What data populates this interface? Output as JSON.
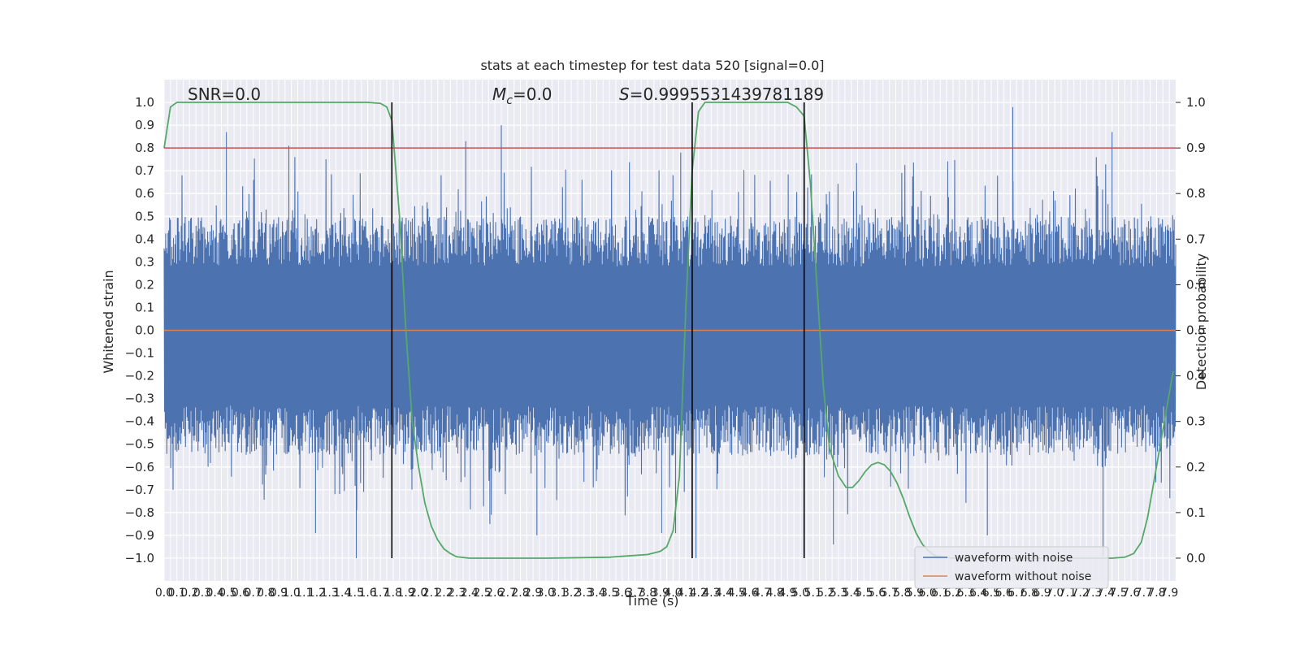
{
  "chart_data": {
    "type": "line",
    "title": "stats at each timestep for test data 520 [signal=0.0]",
    "xlabel": "Time (s)",
    "ylabel": "Whitened strain",
    "y2label": "Detection probability",
    "xlim": [
      0.0,
      7.95
    ],
    "ylim": [
      -1.1,
      1.1
    ],
    "y2lim": [
      -0.05,
      1.05
    ],
    "yticks": [
      "1.0",
      "0.9",
      "0.8",
      "0.7",
      "0.6",
      "0.5",
      "0.4",
      "0.3",
      "0.2",
      "0.1",
      "0.0",
      "-0.1",
      "-0.2",
      "-0.3",
      "-0.4",
      "-0.5",
      "-0.6",
      "-0.7",
      "-0.8",
      "-0.9",
      "-1.0"
    ],
    "y2ticks": [
      "1.0",
      "0.9",
      "0.8",
      "0.7",
      "0.6",
      "0.5",
      "0.4",
      "0.3",
      "0.2",
      "0.1",
      "0.0"
    ],
    "xticks_step": 0.05,
    "xticks_count": 159,
    "grid": true,
    "legend_position": "lower-right",
    "annotations": {
      "snr": "SNR=0.0",
      "mc_symbol": "M",
      "mc_sub": "c",
      "mc_value": "=0.0",
      "s_symbol": "S",
      "s_value": "=0.9995531439781189"
    },
    "threshold_y2": 0.9,
    "vertical_lines_x": [
      1.79,
      4.15,
      5.03
    ],
    "series": [
      {
        "name": "waveform with noise",
        "color": "#4c72b0",
        "kind": "noise",
        "spikes": [
          [
            0.49,
            0.87
          ],
          [
            0.98,
            0.81
          ],
          [
            2.37,
            0.83
          ],
          [
            2.65,
            0.9
          ],
          [
            4.06,
            0.78
          ],
          [
            6.67,
            0.98
          ],
          [
            7.45,
            0.87
          ],
          [
            1.51,
            -1.0
          ],
          [
            4.18,
            -1.0
          ],
          [
            7.38,
            -0.99
          ],
          [
            5.26,
            -0.94
          ],
          [
            2.93,
            -0.9
          ],
          [
            3.91,
            -0.89
          ],
          [
            4.02,
            -0.89
          ],
          [
            1.19,
            -0.89
          ],
          [
            6.47,
            -0.9
          ],
          [
            2.56,
            -0.85
          ]
        ]
      },
      {
        "name": "waveform without noise",
        "color": "#dd8452",
        "values_const": 0.0
      },
      {
        "name": "",
        "color": "#55a868",
        "axis": "y2",
        "x": [
          0.0,
          0.05,
          0.1,
          0.2,
          0.4,
          0.8,
          1.2,
          1.6,
          1.7,
          1.75,
          1.79,
          1.85,
          1.9,
          1.95,
          2.0,
          2.05,
          2.1,
          2.15,
          2.2,
          2.25,
          2.3,
          2.4,
          3.0,
          3.5,
          3.8,
          3.9,
          3.95,
          4.0,
          4.05,
          4.1,
          4.15,
          4.2,
          4.25,
          4.3,
          4.35,
          4.5,
          4.9,
          4.97,
          5.03,
          5.08,
          5.13,
          5.18,
          5.23,
          5.3,
          5.36,
          5.41,
          5.46,
          5.51,
          5.56,
          5.61,
          5.66,
          5.71,
          5.76,
          5.81,
          5.86,
          5.91,
          5.96,
          6.01,
          6.06,
          6.2,
          6.6,
          7.0,
          7.3,
          7.45,
          7.55,
          7.62,
          7.68,
          7.73,
          7.78,
          7.83,
          7.88,
          7.93
        ],
        "values": [
          0.9,
          0.99,
          1.0,
          1.0,
          1.0,
          1.0,
          1.0,
          1.0,
          0.998,
          0.99,
          0.96,
          0.75,
          0.5,
          0.3,
          0.2,
          0.12,
          0.07,
          0.04,
          0.02,
          0.01,
          0.003,
          0.0,
          0.0,
          0.002,
          0.008,
          0.015,
          0.025,
          0.06,
          0.18,
          0.55,
          0.85,
          0.98,
          1.0,
          1.0,
          1.0,
          1.0,
          1.0,
          0.99,
          0.97,
          0.82,
          0.6,
          0.38,
          0.24,
          0.18,
          0.155,
          0.155,
          0.17,
          0.19,
          0.205,
          0.21,
          0.205,
          0.19,
          0.165,
          0.13,
          0.09,
          0.055,
          0.03,
          0.015,
          0.005,
          0.0,
          0.0,
          0.0,
          0.0,
          0.0,
          0.002,
          0.01,
          0.035,
          0.09,
          0.17,
          0.25,
          0.33,
          0.41
        ]
      }
    ]
  }
}
